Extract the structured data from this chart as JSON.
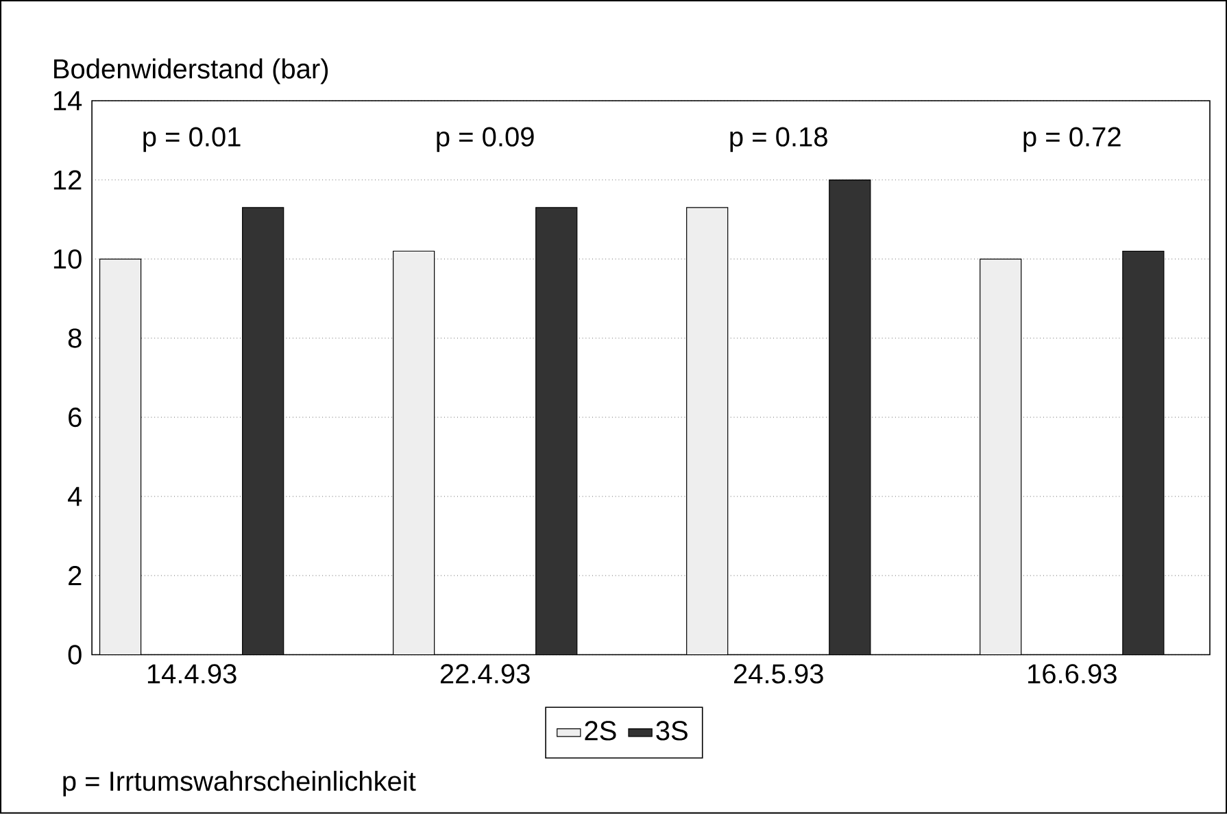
{
  "chart_data": {
    "type": "bar",
    "ylabel": "Bodenwiderstand (bar)",
    "categories": [
      "14.4.93",
      "22.4.93",
      "24.5.93",
      "16.6.93"
    ],
    "series": [
      {
        "name": "2S",
        "color": "#eeeeee",
        "values": [
          10.0,
          10.2,
          11.3,
          10.0
        ]
      },
      {
        "name": "3S",
        "color": "#333333",
        "values": [
          11.3,
          11.3,
          12.0,
          10.2
        ]
      }
    ],
    "ylim": [
      0,
      14
    ],
    "yticks": [
      0,
      2,
      4,
      6,
      8,
      10,
      12,
      14
    ],
    "grid": "y",
    "legend": "bottom",
    "annotations": [
      "p = 0.01",
      "p = 0.09",
      "p = 0.18",
      "p = 0.72",
      "p = Irrtumswahrscheinlichkeit"
    ]
  }
}
